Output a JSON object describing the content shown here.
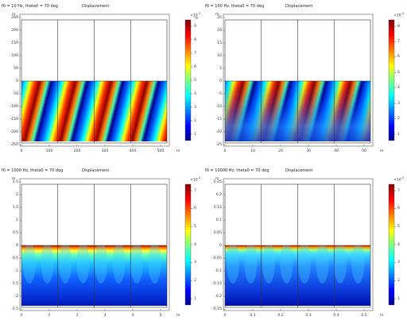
{
  "colors": {
    "frame": "#555555",
    "background": "#ffffff"
  },
  "panels": [
    {
      "id": "p1",
      "subtitle": "f0 = 10 Hz, theta0 = 70 deg",
      "title": "Displacement",
      "unit_x": "m",
      "unit_y": "m",
      "cb_unit": "m",
      "cb_exp": "×10",
      "cb_sup": "-3",
      "yticks": [
        "250",
        "200",
        "150",
        "100",
        "50",
        "0",
        "-50",
        "-100",
        "-150",
        "-200",
        "-250"
      ],
      "xticks": [
        "0",
        "100",
        "200",
        "300",
        "400",
        "500"
      ],
      "cbticks": [
        "9",
        "8",
        "7",
        "6",
        "5",
        "4",
        "3",
        "2",
        "1"
      ],
      "style": "wave"
    },
    {
      "id": "p2",
      "subtitle": "f0 = 100 Hz, theta0 = 70 deg",
      "title": "Displacement",
      "unit_x": "m",
      "unit_y": "m",
      "cb_unit": "",
      "cb_exp": "×10",
      "cb_sup": "-4",
      "yticks": [
        "25",
        "20",
        "15",
        "10",
        "5",
        "0",
        "-5",
        "-10",
        "-15",
        "-20",
        "-25"
      ],
      "xticks": [
        "0",
        "10",
        "20",
        "30",
        "40",
        "50"
      ],
      "cbticks": [
        "8",
        "7",
        "6",
        "5",
        "4",
        "3",
        "2",
        "1"
      ],
      "style": "wave-fade"
    },
    {
      "id": "p3",
      "subtitle": "f0 = 1000 Hz, theta0 = 70 deg",
      "title": "Displacement",
      "unit_x": "m",
      "unit_y": "m",
      "cb_unit": "",
      "cb_exp": "×10",
      "cb_sup": "-5",
      "yticks": [
        "2.5",
        "2",
        "1.5",
        "1",
        "0.5",
        "0",
        "-0.5",
        "-1",
        "-1.5",
        "-2",
        "-2.5"
      ],
      "xticks": [
        "0",
        "1",
        "2",
        "3",
        "4",
        "5"
      ],
      "cbticks": [
        "7",
        "6",
        "5",
        "4",
        "3",
        "2",
        "1"
      ],
      "style": "surface"
    },
    {
      "id": "p4",
      "subtitle": "f0 = 10000 Hz, theta0 = 70 deg",
      "title": "Displacement",
      "unit_x": "m",
      "unit_y": "m",
      "cb_unit": "",
      "cb_exp": "×10",
      "cb_sup": "-5",
      "yticks": [
        "0.25",
        "0.2",
        "0.15",
        "0.1",
        "0.05",
        "0",
        "-0.05",
        "-0.1",
        "-0.15",
        "-0.2",
        "-0.25"
      ],
      "xticks": [
        "0",
        "0.1",
        "0.2",
        "0.3",
        "0.4",
        "0.5"
      ],
      "cbticks": [
        "7",
        "6",
        "5",
        "4",
        "3",
        "2",
        "1"
      ],
      "style": "surface-smooth"
    }
  ]
}
